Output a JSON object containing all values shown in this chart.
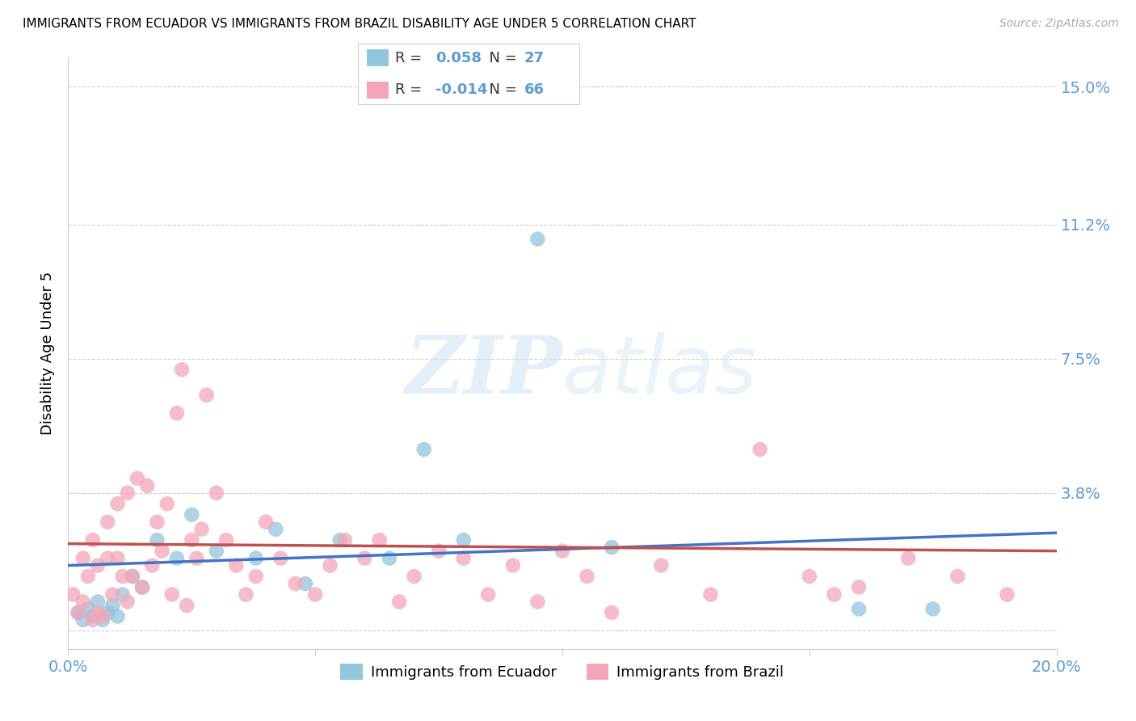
{
  "title": "IMMIGRANTS FROM ECUADOR VS IMMIGRANTS FROM BRAZIL DISABILITY AGE UNDER 5 CORRELATION CHART",
  "source": "Source: ZipAtlas.com",
  "ylabel": "Disability Age Under 5",
  "xlim": [
    0.0,
    0.2
  ],
  "ylim": [
    -0.005,
    0.158
  ],
  "yticks": [
    0.0,
    0.038,
    0.075,
    0.112,
    0.15
  ],
  "ytick_labels": [
    "",
    "3.8%",
    "7.5%",
    "11.2%",
    "15.0%"
  ],
  "xticks": [
    0.0,
    0.05,
    0.1,
    0.15,
    0.2
  ],
  "ecuador_R": 0.058,
  "ecuador_N": 27,
  "brazil_R": -0.014,
  "brazil_N": 66,
  "ecuador_color": "#92c5de",
  "brazil_color": "#f4a6b8",
  "ecuador_line_color": "#4472c4",
  "brazil_line_color": "#c0504d",
  "watermark_zip": "ZIP",
  "watermark_atlas": "atlas",
  "ecuador_x": [
    0.002,
    0.003,
    0.004,
    0.005,
    0.006,
    0.007,
    0.008,
    0.009,
    0.01,
    0.011,
    0.013,
    0.015,
    0.018,
    0.022,
    0.025,
    0.03,
    0.038,
    0.042,
    0.048,
    0.055,
    0.065,
    0.072,
    0.08,
    0.095,
    0.11,
    0.16,
    0.175
  ],
  "ecuador_y": [
    0.005,
    0.003,
    0.006,
    0.004,
    0.008,
    0.003,
    0.005,
    0.007,
    0.004,
    0.01,
    0.015,
    0.012,
    0.025,
    0.02,
    0.032,
    0.022,
    0.02,
    0.028,
    0.013,
    0.025,
    0.02,
    0.05,
    0.025,
    0.108,
    0.023,
    0.006,
    0.006
  ],
  "brazil_x": [
    0.001,
    0.002,
    0.003,
    0.003,
    0.004,
    0.005,
    0.005,
    0.006,
    0.006,
    0.007,
    0.008,
    0.008,
    0.009,
    0.01,
    0.01,
    0.011,
    0.012,
    0.012,
    0.013,
    0.014,
    0.015,
    0.016,
    0.017,
    0.018,
    0.019,
    0.02,
    0.021,
    0.022,
    0.023,
    0.024,
    0.025,
    0.026,
    0.027,
    0.028,
    0.03,
    0.032,
    0.034,
    0.036,
    0.038,
    0.04,
    0.043,
    0.046,
    0.05,
    0.053,
    0.056,
    0.06,
    0.063,
    0.067,
    0.07,
    0.075,
    0.08,
    0.085,
    0.09,
    0.095,
    0.1,
    0.105,
    0.11,
    0.12,
    0.13,
    0.14,
    0.15,
    0.155,
    0.16,
    0.17,
    0.18,
    0.19
  ],
  "brazil_y": [
    0.01,
    0.005,
    0.02,
    0.008,
    0.015,
    0.003,
    0.025,
    0.005,
    0.018,
    0.004,
    0.02,
    0.03,
    0.01,
    0.02,
    0.035,
    0.015,
    0.008,
    0.038,
    0.015,
    0.042,
    0.012,
    0.04,
    0.018,
    0.03,
    0.022,
    0.035,
    0.01,
    0.06,
    0.072,
    0.007,
    0.025,
    0.02,
    0.028,
    0.065,
    0.038,
    0.025,
    0.018,
    0.01,
    0.015,
    0.03,
    0.02,
    0.013,
    0.01,
    0.018,
    0.025,
    0.02,
    0.025,
    0.008,
    0.015,
    0.022,
    0.02,
    0.01,
    0.018,
    0.008,
    0.022,
    0.015,
    0.005,
    0.018,
    0.01,
    0.05,
    0.015,
    0.01,
    0.012,
    0.02,
    0.015,
    0.01
  ]
}
